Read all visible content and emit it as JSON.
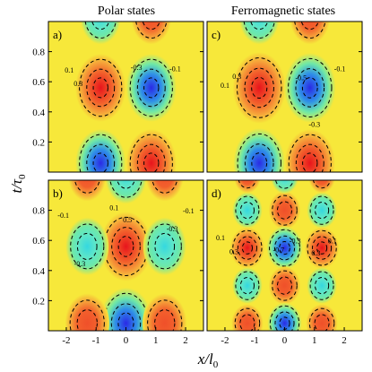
{
  "figure": {
    "col_titles": [
      "Polar states",
      "Ferromagnetic states"
    ],
    "ylabel": {
      "main": "t/τ",
      "sub": "0"
    },
    "xlabel": {
      "main": "x/l",
      "sub": "0"
    }
  },
  "chart_data": [
    {
      "type": "heatmap",
      "panel": "a)",
      "column": "Polar states",
      "xlim": [
        -2.6,
        2.6
      ],
      "ylim": [
        0,
        1.0
      ],
      "x_ticks": [],
      "y_ticks": [
        "0.8",
        "0.6",
        "0.4",
        "0.2"
      ],
      "grid": false,
      "contour_labels": [
        {
          "text": "0.1",
          "x": -1.9,
          "y": 0.66
        },
        {
          "text": "0.3",
          "x": -1.6,
          "y": 0.57
        },
        {
          "text": "-0.3",
          "x": 0.35,
          "y": 0.68
        },
        {
          "text": "-0.1",
          "x": 1.65,
          "y": 0.67
        }
      ],
      "blobs": [
        {
          "x": -0.85,
          "y": 0.56,
          "value": 0.8
        },
        {
          "x": 0.85,
          "y": 0.56,
          "value": -0.8
        },
        {
          "x": -0.85,
          "y": 0.06,
          "value": -0.8
        },
        {
          "x": 0.85,
          "y": 0.06,
          "value": 0.8
        },
        {
          "x": -0.85,
          "y": 1.03,
          "value": -0.4
        },
        {
          "x": 0.85,
          "y": 1.03,
          "value": 0.4
        }
      ]
    },
    {
      "type": "heatmap",
      "panel": "c)",
      "column": "Ferromagnetic states",
      "xlim": [
        -2.6,
        2.6
      ],
      "ylim": [
        0,
        1.0
      ],
      "x_ticks": [],
      "y_ticks": [],
      "grid": false,
      "contour_labels": [
        {
          "text": "0.1",
          "x": -2.0,
          "y": 0.56
        },
        {
          "text": "0.3",
          "x": -1.6,
          "y": 0.62
        },
        {
          "text": "-0.5",
          "x": 0.55,
          "y": 0.61
        },
        {
          "text": "-0.1",
          "x": 1.85,
          "y": 0.67
        },
        {
          "text": "-0.3",
          "x": 1.0,
          "y": 0.3
        }
      ],
      "blobs": [
        {
          "x": -0.85,
          "y": 0.56,
          "value": 0.9
        },
        {
          "x": 0.85,
          "y": 0.56,
          "value": -0.85
        },
        {
          "x": -0.85,
          "y": 0.06,
          "value": -0.85
        },
        {
          "x": 0.85,
          "y": 0.06,
          "value": 0.8
        },
        {
          "x": -0.85,
          "y": 1.03,
          "value": -0.4
        },
        {
          "x": 0.85,
          "y": 1.03,
          "value": 0.4
        }
      ]
    },
    {
      "type": "heatmap",
      "panel": "b)",
      "column": "Polar states",
      "xlim": [
        -2.6,
        2.6
      ],
      "ylim": [
        0,
        1.0
      ],
      "x_ticks": [
        "-2",
        "-1",
        "0",
        "1",
        "2"
      ],
      "y_ticks": [
        "0.8",
        "0.6",
        "0.4",
        "0.2"
      ],
      "grid": false,
      "contour_labels": [
        {
          "text": "-0.1",
          "x": -2.1,
          "y": 0.75
        },
        {
          "text": "0.1",
          "x": -0.4,
          "y": 0.8
        },
        {
          "text": "0.5",
          "x": 0.05,
          "y": 0.72
        },
        {
          "text": "-0.3",
          "x": -1.55,
          "y": 0.43
        },
        {
          "text": "-0.3",
          "x": 1.55,
          "y": 0.66
        },
        {
          "text": "-0.1",
          "x": 2.1,
          "y": 0.78
        }
      ],
      "blobs": [
        {
          "x": 0.0,
          "y": 0.56,
          "value": 0.85
        },
        {
          "x": -1.3,
          "y": 0.56,
          "value": -0.5
        },
        {
          "x": 1.3,
          "y": 0.56,
          "value": -0.5
        },
        {
          "x": 0.0,
          "y": 0.05,
          "value": -0.9
        },
        {
          "x": -1.3,
          "y": 0.05,
          "value": 0.55
        },
        {
          "x": 1.3,
          "y": 0.05,
          "value": 0.55
        },
        {
          "x": 0.0,
          "y": 1.03,
          "value": -0.45
        },
        {
          "x": -1.3,
          "y": 1.03,
          "value": 0.3
        },
        {
          "x": 1.3,
          "y": 1.03,
          "value": 0.3
        }
      ]
    },
    {
      "type": "heatmap",
      "panel": "d)",
      "column": "Ferromagnetic states",
      "xlim": [
        -2.6,
        2.6
      ],
      "ylim": [
        0,
        1.0
      ],
      "x_ticks": [
        "-2",
        "-1",
        "0",
        "1",
        "2"
      ],
      "y_ticks": [],
      "grid": false,
      "contour_labels": [
        {
          "text": "0.1",
          "x": -2.15,
          "y": 0.6
        },
        {
          "text": "0.3",
          "x": -1.7,
          "y": 0.51
        },
        {
          "text": "-0.7",
          "x": -0.2,
          "y": 0.52
        },
        {
          "text": "-0.3",
          "x": 0.35,
          "y": 0.58
        },
        {
          "text": "0.1",
          "x": 1.6,
          "y": 0.58
        },
        {
          "text": "0.3",
          "x": 1.05,
          "y": 0.5
        }
      ],
      "blobs": [
        {
          "x": -1.25,
          "y": 0.8,
          "value": -0.5
        },
        {
          "x": 0.0,
          "y": 0.8,
          "value": 0.6
        },
        {
          "x": 1.25,
          "y": 0.8,
          "value": -0.5
        },
        {
          "x": -1.25,
          "y": 0.55,
          "value": 0.75
        },
        {
          "x": 0.0,
          "y": 0.55,
          "value": -0.85
        },
        {
          "x": 1.25,
          "y": 0.55,
          "value": 0.75
        },
        {
          "x": -1.25,
          "y": 0.3,
          "value": -0.5
        },
        {
          "x": 0.0,
          "y": 0.3,
          "value": 0.6
        },
        {
          "x": 1.25,
          "y": 0.3,
          "value": -0.5
        },
        {
          "x": -1.25,
          "y": 0.05,
          "value": 0.6
        },
        {
          "x": 0.0,
          "y": 0.05,
          "value": -0.75
        },
        {
          "x": 1.25,
          "y": 0.05,
          "value": 0.6
        },
        {
          "x": -1.25,
          "y": 1.02,
          "value": 0.3
        },
        {
          "x": 0.0,
          "y": 1.02,
          "value": -0.35
        },
        {
          "x": 1.25,
          "y": 1.02,
          "value": 0.3
        }
      ]
    }
  ]
}
